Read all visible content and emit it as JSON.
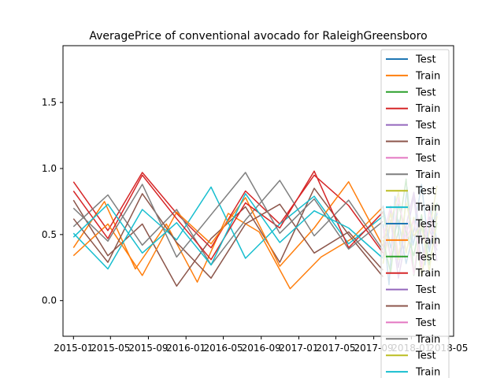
{
  "chart_data": {
    "type": "line",
    "title": "AveragePrice of conventional avocado for RaleighGreensboro",
    "xlabel": "",
    "ylabel": "",
    "xlim": [
      "2014-11-28",
      "2018-05-18"
    ],
    "ylim": [
      -0.27,
      1.93
    ],
    "x_ticks": [
      "2015-01",
      "2015-05",
      "2015-09",
      "2016-01",
      "2016-05",
      "2016-09",
      "2017-01",
      "2017-05",
      "2017-09",
      "2018-01",
      "2018-05"
    ],
    "y_ticks": [
      "0.0",
      "0.5",
      "1.0",
      "1.5"
    ],
    "grid": false,
    "legend_position": "top-right",
    "series": [
      {
        "name": "Test",
        "color": "#1f77b4",
        "values": [
          0.58,
          0.12,
          0.79,
          0.35,
          0.86,
          0.42,
          0.61,
          0.27,
          0.68,
          0.45
        ]
      },
      {
        "name": "Train",
        "color": "#ff7f0e",
        "values": [
          0.4,
          0.75,
          0.24,
          0.58,
          0.14,
          0.66,
          0.52,
          0.09,
          0.33,
          0.47,
          0.71
        ]
      },
      {
        "name": "Test",
        "color": "#2ca02c",
        "values": [
          0.68,
          0.31,
          0.52,
          0.92,
          0.19,
          0.56,
          0.38,
          0.74
        ]
      },
      {
        "name": "Train",
        "color": "#d62728",
        "values": [
          0.9,
          0.53,
          0.97,
          0.66,
          0.4,
          0.83,
          0.58,
          0.95,
          0.72,
          0.36
        ]
      },
      {
        "name": "Test",
        "color": "#9467bd",
        "values": [
          0.33,
          0.61,
          0.17,
          0.48,
          0.79,
          0.26,
          0.54,
          0.38
        ]
      },
      {
        "name": "Train",
        "color": "#8c564b",
        "values": [
          0.76,
          0.34,
          0.58,
          0.11,
          0.47,
          0.71,
          0.29,
          0.85,
          0.5,
          0.18
        ]
      },
      {
        "name": "Test",
        "color": "#e377c2",
        "values": [
          0.47,
          0.72,
          0.35,
          0.58,
          0.2,
          0.64,
          0.41,
          0.67
        ]
      },
      {
        "name": "Train",
        "color": "#7f7f7f",
        "values": [
          0.56,
          0.8,
          0.42,
          0.69,
          0.27,
          0.61,
          0.91,
          0.49,
          0.76,
          0.38
        ]
      },
      {
        "name": "Test",
        "color": "#bcbd22",
        "values": [
          0.28,
          0.59,
          0.82,
          0.36,
          0.63,
          0.18,
          0.52,
          0.87
        ]
      },
      {
        "name": "Train",
        "color": "#17becf",
        "values": [
          0.51,
          0.24,
          0.69,
          0.46,
          0.86,
          0.32,
          0.58,
          0.79,
          0.43,
          0.64
        ]
      },
      {
        "name": "Test",
        "color": "#1f77b4",
        "values": [
          0.72,
          0.4,
          0.61,
          0.28,
          0.53,
          0.88,
          0.37,
          0.66
        ]
      },
      {
        "name": "Train",
        "color": "#ff7f0e",
        "values": [
          0.34,
          0.58,
          0.19,
          0.67,
          0.43,
          0.78,
          0.26,
          0.55,
          0.9,
          0.41
        ]
      },
      {
        "name": "Test",
        "color": "#2ca02c",
        "values": [
          0.46,
          0.21,
          0.73,
          0.52,
          0.34,
          0.65,
          0.27,
          0.59
        ]
      },
      {
        "name": "Train",
        "color": "#d62728",
        "values": [
          0.83,
          0.47,
          0.95,
          0.62,
          0.31,
          0.74,
          0.55,
          0.98,
          0.4,
          0.67
        ]
      },
      {
        "name": "Test",
        "color": "#9467bd",
        "values": [
          0.39,
          0.68,
          0.25,
          0.57,
          0.82,
          0.44,
          0.63,
          0.3
        ]
      },
      {
        "name": "Train",
        "color": "#8c564b",
        "values": [
          0.62,
          0.29,
          0.81,
          0.44,
          0.17,
          0.58,
          0.73,
          0.36,
          0.52,
          0.23
        ]
      },
      {
        "name": "Test",
        "color": "#e377c2",
        "values": [
          0.55,
          0.33,
          0.78,
          0.46,
          0.61,
          0.24,
          0.69,
          0.41
        ]
      },
      {
        "name": "Train",
        "color": "#7f7f7f",
        "values": [
          0.7,
          0.45,
          0.88,
          0.33,
          0.65,
          0.97,
          0.51,
          0.77,
          0.39,
          0.6
        ]
      },
      {
        "name": "Test",
        "color": "#bcbd22",
        "values": [
          0.42,
          0.66,
          0.31,
          0.74,
          0.49,
          0.57,
          0.22,
          0.64
        ]
      },
      {
        "name": "Train",
        "color": "#17becf",
        "values": [
          0.48,
          0.73,
          0.36,
          0.59,
          0.27,
          0.81,
          0.44,
          0.68,
          0.55,
          0.32
        ]
      }
    ]
  }
}
